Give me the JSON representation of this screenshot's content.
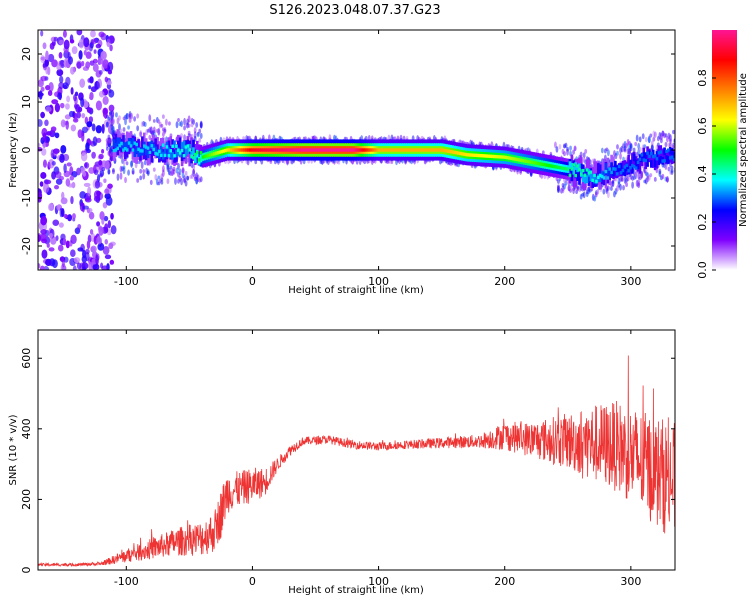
{
  "title": "S126.2023.048.07.37.G23",
  "chart_data": [
    {
      "type": "heatmap",
      "xlabel": "Height of straight line (km)",
      "ylabel": "Frequency (Hz)",
      "xlim": [
        -170,
        335
      ],
      "ylim": [
        -25,
        25
      ],
      "xticks": [
        -100,
        0,
        100,
        200,
        300
      ],
      "yticks": [
        -20,
        -10,
        0,
        10,
        20
      ],
      "colorbar": {
        "label": "Normalized spectral amplitude",
        "range": [
          0,
          1
        ],
        "ticks": [
          "0.0",
          "0.2",
          "0.4",
          "0.6",
          "0.8"
        ],
        "tick_values": [
          0,
          0.2,
          0.4,
          0.6,
          0.8
        ],
        "stops": [
          "#ffffff",
          "#7f00ff",
          "#0000ff",
          "#00ffff",
          "#00ff00",
          "#ffff00",
          "#ff8000",
          "#ff0000",
          "#ff1493"
        ]
      },
      "ridge": {
        "x": [
          -110,
          -80,
          -50,
          -40,
          -20,
          0,
          40,
          80,
          100,
          150,
          170,
          200,
          220,
          250,
          270,
          290,
          310,
          335
        ],
        "freq": [
          1,
          0,
          0,
          -1.5,
          0,
          0,
          0,
          0,
          0,
          0,
          -1,
          -1.5,
          -2.5,
          -4,
          -5.5,
          -4,
          -2,
          -1
        ],
        "amplitude": [
          0.35,
          0.35,
          0.4,
          0.5,
          0.65,
          0.9,
          1.0,
          1.0,
          0.7,
          0.7,
          0.65,
          0.6,
          0.55,
          0.45,
          0.4,
          0.3,
          0.3,
          0.3
        ]
      }
    },
    {
      "type": "line",
      "xlabel": "Height of straight line (km)",
      "ylabel": "SNR (10 * v/v)",
      "xlim": [
        -170,
        335
      ],
      "ylim": [
        0,
        680
      ],
      "xticks": [
        -100,
        0,
        100,
        200,
        300
      ],
      "yticks": [
        0,
        200,
        400,
        600
      ],
      "color": "#ee3333",
      "trend": {
        "x": [
          -170,
          -140,
          -120,
          -100,
          -80,
          -60,
          -40,
          -30,
          -25,
          -20,
          -10,
          0,
          10,
          20,
          30,
          40,
          60,
          80,
          100,
          120,
          150,
          180,
          200,
          220,
          250,
          270,
          290,
          310,
          335
        ],
        "mean": [
          15,
          15,
          18,
          40,
          60,
          80,
          90,
          110,
          160,
          220,
          230,
          240,
          250,
          300,
          340,
          365,
          370,
          355,
          350,
          355,
          360,
          365,
          380,
          370,
          365,
          360,
          350,
          300,
          250
        ],
        "spread": [
          4,
          4,
          5,
          20,
          30,
          40,
          50,
          60,
          70,
          60,
          50,
          50,
          40,
          20,
          15,
          12,
          12,
          12,
          12,
          12,
          15,
          20,
          40,
          50,
          80,
          110,
          130,
          150,
          170
        ]
      }
    }
  ]
}
